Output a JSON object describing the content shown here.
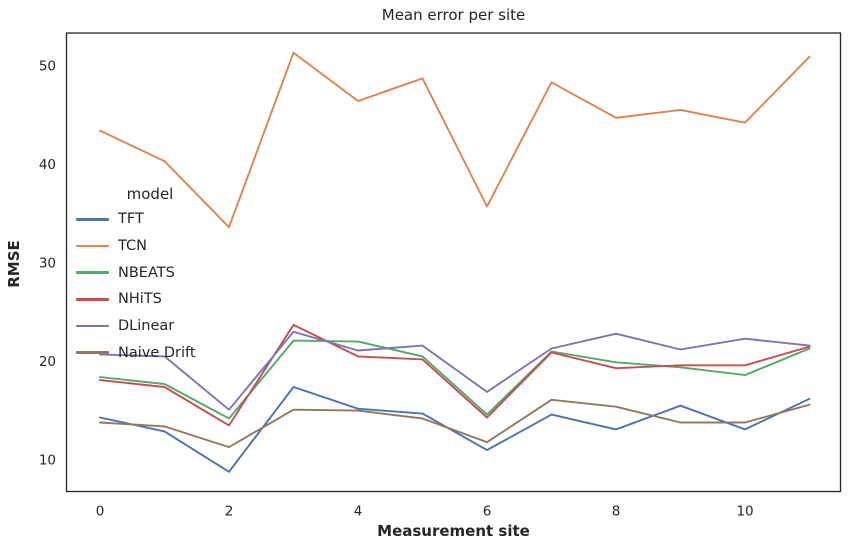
{
  "chart_data": {
    "type": "line",
    "title": "Mean error per site",
    "xlabel": "Measurement site",
    "ylabel": "RMSE",
    "legend_title": "model",
    "legend_position": "center-left-inside",
    "grid": false,
    "x": [
      0,
      1,
      2,
      3,
      4,
      5,
      6,
      7,
      8,
      9,
      10,
      11
    ],
    "xticks": [
      0,
      2,
      4,
      6,
      8,
      10
    ],
    "yticks": [
      10,
      20,
      30,
      40,
      50
    ],
    "xlim": [
      -0.52,
      11.48
    ],
    "ylim": [
      6.8,
      53.3
    ],
    "series": [
      {
        "name": "TFT",
        "color": "#4C72B0",
        "values": [
          14.3,
          12.9,
          8.8,
          17.4,
          15.2,
          14.7,
          11.0,
          14.6,
          13.1,
          15.5,
          13.1,
          16.2
        ]
      },
      {
        "name": "TCN",
        "color": "#DD8452",
        "values": [
          43.4,
          40.3,
          33.6,
          51.3,
          46.4,
          48.7,
          35.7,
          48.3,
          44.7,
          45.5,
          44.2,
          50.9
        ]
      },
      {
        "name": "NBEATS",
        "color": "#55A868",
        "values": [
          18.4,
          17.7,
          14.2,
          22.1,
          22.0,
          20.5,
          14.6,
          21.0,
          19.9,
          19.4,
          18.6,
          21.3
        ]
      },
      {
        "name": "NHiTS",
        "color": "#C44E52",
        "values": [
          18.1,
          17.4,
          13.5,
          23.7,
          20.5,
          20.2,
          14.3,
          20.9,
          19.3,
          19.6,
          19.6,
          21.5
        ]
      },
      {
        "name": "DLinear",
        "color": "#8172B3",
        "values": [
          20.7,
          20.5,
          15.1,
          23.0,
          21.1,
          21.6,
          16.9,
          21.3,
          22.8,
          21.2,
          22.3,
          21.6
        ]
      },
      {
        "name": "Naive Drift",
        "color": "#937860",
        "values": [
          13.8,
          13.4,
          11.3,
          15.1,
          15.0,
          14.2,
          11.8,
          16.1,
          15.4,
          13.8,
          13.8,
          15.6
        ]
      }
    ],
    "style": {
      "text_color": "#262626",
      "spine_color": "#262626",
      "background": "#ffffff",
      "line_width": 1.9
    }
  }
}
